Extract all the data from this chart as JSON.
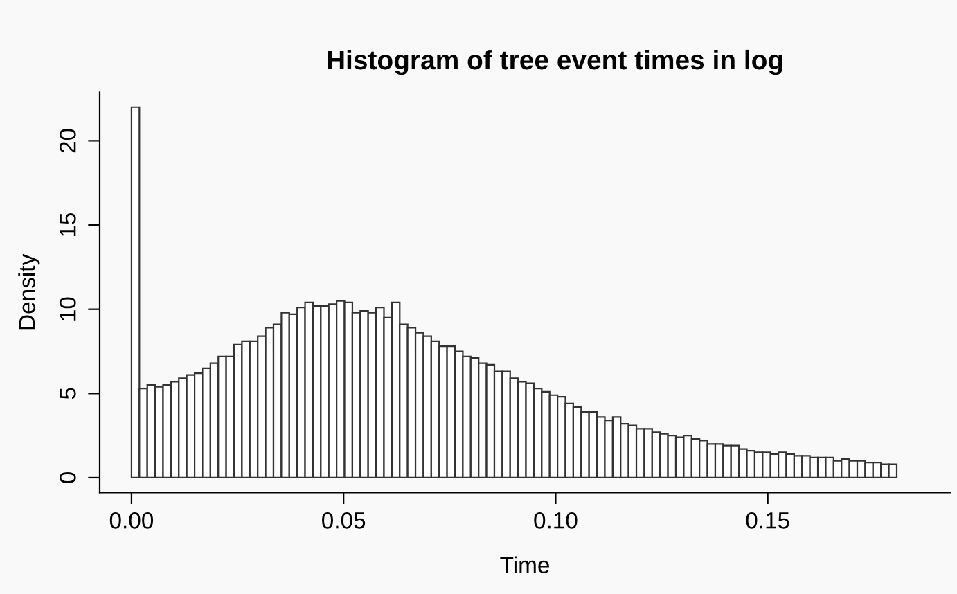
{
  "chart_data": {
    "type": "histogram",
    "title": "Histogram of tree event times in log",
    "xlabel": "Time",
    "ylabel": "Density",
    "bins": [
      0,
      0.00186,
      0.00372,
      0.00558,
      0.00744,
      0.0093,
      0.01116,
      0.01302,
      0.01488,
      0.01674,
      0.0186,
      0.02046,
      0.02232,
      0.02418,
      0.02604,
      0.0279,
      0.02976,
      0.03162,
      0.03348,
      0.03534,
      0.0372,
      0.03906,
      0.04092,
      0.04278,
      0.04464,
      0.0465,
      0.04836,
      0.05022,
      0.05208,
      0.05394,
      0.0558,
      0.05766,
      0.05952,
      0.06138,
      0.06324,
      0.0651,
      0.06696,
      0.06882,
      0.07068,
      0.07254,
      0.0744,
      0.07626,
      0.07812,
      0.07998,
      0.08184,
      0.0837,
      0.08556,
      0.08742,
      0.08928,
      0.09114,
      0.093,
      0.09486,
      0.09672,
      0.09858,
      0.10044,
      0.1023,
      0.10416,
      0.10602,
      0.10788,
      0.10974,
      0.1116,
      0.11346,
      0.11532,
      0.11718,
      0.11904,
      0.1209,
      0.12276,
      0.12462,
      0.12648,
      0.12834,
      0.1302,
      0.13206,
      0.13392,
      0.13578,
      0.13764,
      0.1395,
      0.14136,
      0.14322,
      0.14508,
      0.14694,
      0.1488,
      0.15066,
      0.15252,
      0.15438,
      0.15624,
      0.1581,
      0.15996,
      0.16182,
      0.16368,
      0.16554,
      0.1674,
      0.16926,
      0.17112,
      0.17298,
      0.17484,
      0.1767,
      0.17856,
      0.18042
    ],
    "values": [
      22.0,
      5.3,
      5.5,
      5.4,
      5.5,
      5.7,
      5.9,
      6.1,
      6.2,
      6.5,
      6.8,
      7.2,
      7.2,
      7.9,
      8.1,
      8.1,
      8.4,
      8.9,
      9.1,
      9.8,
      9.7,
      10.1,
      10.4,
      10.2,
      10.2,
      10.3,
      10.5,
      10.4,
      9.8,
      9.9,
      9.8,
      10.1,
      9.5,
      10.4,
      9.1,
      8.9,
      8.6,
      8.4,
      8.1,
      7.8,
      7.8,
      7.5,
      7.2,
      7.1,
      6.8,
      6.7,
      6.3,
      6.3,
      5.9,
      5.7,
      5.6,
      5.3,
      5.1,
      4.9,
      4.8,
      4.4,
      4.2,
      3.9,
      3.9,
      3.6,
      3.4,
      3.6,
      3.2,
      3.1,
      2.9,
      2.9,
      2.7,
      2.6,
      2.5,
      2.4,
      2.5,
      2.3,
      2.2,
      2.0,
      2.0,
      1.9,
      1.9,
      1.7,
      1.6,
      1.5,
      1.5,
      1.4,
      1.5,
      1.4,
      1.3,
      1.3,
      1.2,
      1.2,
      1.2,
      1.0,
      1.1,
      1.0,
      1.0,
      0.9,
      0.9,
      0.8,
      0.8
    ],
    "color": "#ffffff",
    "xlim": [
      -0.0075,
      0.193
    ],
    "xticks": [
      {
        "value": 0,
        "label": "0.00"
      },
      {
        "value": 0.05,
        "label": "0.05"
      },
      {
        "value": 0.1,
        "label": "0.10"
      },
      {
        "value": 0.15,
        "label": "0.15"
      }
    ],
    "ylim": [
      -0.88,
      22.88
    ],
    "yticks": [
      0,
      5,
      10,
      15,
      20
    ],
    "grid": false
  }
}
